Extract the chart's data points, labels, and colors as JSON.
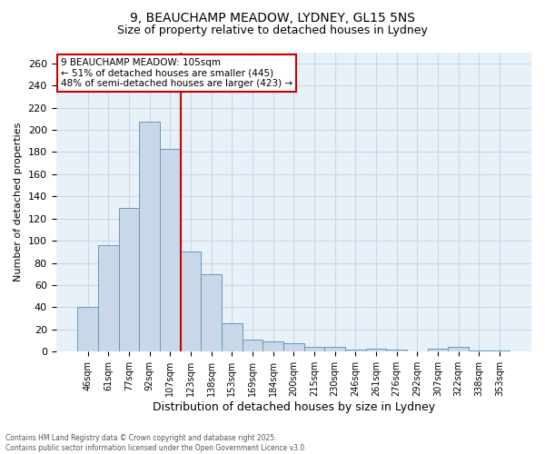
{
  "title_line1": "9, BEAUCHAMP MEADOW, LYDNEY, GL15 5NS",
  "title_line2": "Size of property relative to detached houses in Lydney",
  "xlabel": "Distribution of detached houses by size in Lydney",
  "ylabel": "Number of detached properties",
  "categories": [
    "46sqm",
    "61sqm",
    "77sqm",
    "92sqm",
    "107sqm",
    "123sqm",
    "138sqm",
    "153sqm",
    "169sqm",
    "184sqm",
    "200sqm",
    "215sqm",
    "230sqm",
    "246sqm",
    "261sqm",
    "276sqm",
    "292sqm",
    "307sqm",
    "322sqm",
    "338sqm",
    "353sqm"
  ],
  "values": [
    40,
    96,
    130,
    207,
    183,
    90,
    70,
    26,
    11,
    9,
    8,
    4,
    4,
    2,
    3,
    2,
    0,
    3,
    4,
    1,
    1
  ],
  "bar_color": "#c8d8e8",
  "bar_edge_color": "#6699bb",
  "vline_color": "#cc0000",
  "vline_index": 4,
  "annotation_text_line1": "9 BEAUCHAMP MEADOW: 105sqm",
  "annotation_text_line2": "← 51% of detached houses are smaller (445)",
  "annotation_text_line3": "48% of semi-detached houses are larger (423) →",
  "annotation_fontsize": 7.5,
  "annotation_box_color": "white",
  "annotation_box_edge": "#cc0000",
  "ylim": [
    0,
    270
  ],
  "yticks": [
    0,
    20,
    40,
    60,
    80,
    100,
    120,
    140,
    160,
    180,
    200,
    220,
    240,
    260
  ],
  "grid_color": "#c8d8e8",
  "background_color": "#e8f0f8",
  "footer_line1": "Contains HM Land Registry data © Crown copyright and database right 2025.",
  "footer_line2": "Contains public sector information licensed under the Open Government Licence v3.0.",
  "title_fontsize": 10,
  "subtitle_fontsize": 9
}
